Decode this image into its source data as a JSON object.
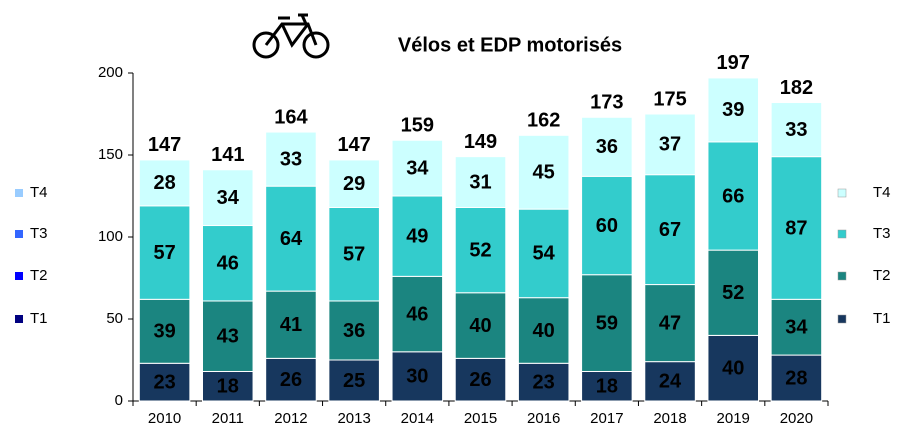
{
  "chart_data": {
    "type": "stacked_bar",
    "title": "Vélos et EDP motorisés",
    "categories": [
      "2010",
      "2011",
      "2012",
      "2013",
      "2014",
      "2015",
      "2016",
      "2017",
      "2018",
      "2019",
      "2020"
    ],
    "series": [
      {
        "name": "T1",
        "color": "#17375e",
        "values": [
          23,
          18,
          26,
          25,
          30,
          26,
          23,
          18,
          24,
          40,
          28
        ]
      },
      {
        "name": "T2",
        "color": "#1b8580",
        "values": [
          39,
          43,
          41,
          36,
          46,
          40,
          40,
          59,
          47,
          52,
          34
        ]
      },
      {
        "name": "T3",
        "color": "#33cccc",
        "values": [
          57,
          46,
          64,
          57,
          49,
          52,
          54,
          60,
          67,
          66,
          87
        ]
      },
      {
        "name": "T4",
        "color": "#ccffff",
        "values": [
          28,
          34,
          33,
          29,
          34,
          31,
          45,
          36,
          37,
          39,
          33
        ]
      }
    ],
    "totals": [
      147,
      141,
      164,
      147,
      159,
      149,
      162,
      173,
      175,
      197,
      182
    ],
    "ylim": [
      0,
      200
    ],
    "yticks": [
      0,
      50,
      100,
      150,
      200
    ],
    "grid": false,
    "legend": "right",
    "legend_left": [
      {
        "name": "T4",
        "color": "#99ccff"
      },
      {
        "name": "T3",
        "color": "#3366ff"
      },
      {
        "name": "T2",
        "color": "#0000ff"
      },
      {
        "name": "T1",
        "color": "#000080"
      }
    ]
  }
}
